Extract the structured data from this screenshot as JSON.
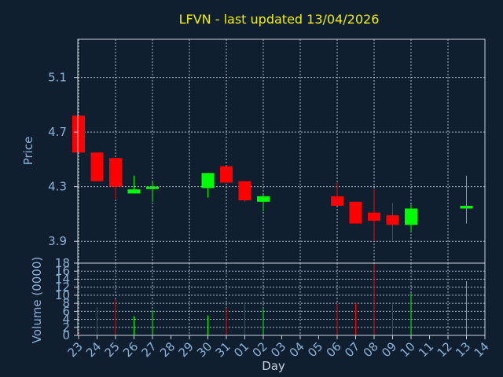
{
  "colors": {
    "background": "#0f1f30",
    "title": "#f0f000",
    "axis_text": "#8fb2d4",
    "grid": "#c8d2dc",
    "frame": "#c8d2dc",
    "up": "#00ff00",
    "down": "#ff0000"
  },
  "chart_data": [
    {
      "type": "candlestick",
      "title": "LFVN - last updated 13/04/2026",
      "ylabel": "Price",
      "ylim": [
        3.74,
        5.38
      ],
      "yticks": [
        3.9,
        4.3,
        4.7,
        5.1
      ],
      "ytick_labels": [
        "3.9",
        "4.3",
        "4.7",
        "5.1"
      ],
      "grid": true,
      "x": [
        "23",
        "24",
        "25",
        "26",
        "27",
        "28",
        "29",
        "30",
        "31",
        "01",
        "02",
        "03",
        "04",
        "05",
        "06",
        "07",
        "08",
        "09",
        "10",
        "11",
        "12",
        "13",
        "14"
      ],
      "candles": [
        {
          "x": "23",
          "open": 4.82,
          "high": 4.82,
          "low": 4.55,
          "close": 4.55,
          "dir": "down"
        },
        {
          "x": "24",
          "open": 4.55,
          "high": 4.55,
          "low": 4.34,
          "close": 4.34,
          "dir": "down"
        },
        {
          "x": "25",
          "open": 4.51,
          "high": 4.51,
          "low": 4.21,
          "close": 4.3,
          "dir": "down"
        },
        {
          "x": "26",
          "open": 4.25,
          "high": 4.38,
          "low": 4.25,
          "close": 4.28,
          "dir": "up"
        },
        {
          "x": "27",
          "open": 4.29,
          "high": 4.34,
          "low": 4.19,
          "close": 4.3,
          "dir": "up"
        },
        {
          "x": "30",
          "open": 4.29,
          "high": 4.4,
          "low": 4.22,
          "close": 4.4,
          "dir": "up"
        },
        {
          "x": "31",
          "open": 4.45,
          "high": 4.45,
          "low": 4.33,
          "close": 4.33,
          "dir": "down"
        },
        {
          "x": "01",
          "open": 4.34,
          "high": 4.34,
          "low": 4.19,
          "close": 4.2,
          "dir": "down"
        },
        {
          "x": "02",
          "open": 4.19,
          "high": 4.24,
          "low": 4.12,
          "close": 4.23,
          "dir": "up"
        },
        {
          "x": "06",
          "open": 4.23,
          "high": 4.33,
          "low": 4.16,
          "close": 4.16,
          "dir": "down"
        },
        {
          "x": "07",
          "open": 4.19,
          "high": 4.19,
          "low": 4.03,
          "close": 4.03,
          "dir": "down"
        },
        {
          "x": "08",
          "open": 4.11,
          "high": 4.28,
          "low": 3.9,
          "close": 4.05,
          "dir": "down"
        },
        {
          "x": "09",
          "open": 4.09,
          "high": 4.18,
          "low": 3.91,
          "close": 4.02,
          "dir": "down"
        },
        {
          "x": "10",
          "open": 4.02,
          "high": 4.17,
          "low": 3.97,
          "close": 4.14,
          "dir": "up"
        },
        {
          "x": "13",
          "open": 4.14,
          "high": 4.38,
          "low": 4.03,
          "close": 4.16,
          "dir": "up"
        }
      ]
    },
    {
      "type": "bar",
      "xlabel": "Day",
      "ylabel": "Volume (0000)",
      "ylim": [
        0,
        18
      ],
      "yticks": [
        0,
        2,
        4,
        6,
        8,
        10,
        12,
        14,
        16,
        18
      ],
      "ytick_labels": [
        "0",
        "2",
        "4",
        "6",
        "8",
        "10",
        "12",
        "14",
        "16",
        "18"
      ],
      "grid": true,
      "categories": [
        "23",
        "24",
        "25",
        "26",
        "27",
        "28",
        "29",
        "30",
        "31",
        "01",
        "02",
        "03",
        "04",
        "05",
        "06",
        "07",
        "08",
        "09",
        "10",
        "11",
        "12",
        "13",
        "14"
      ],
      "bars": [
        {
          "x": "23",
          "value": 0.3,
          "dir": "down"
        },
        {
          "x": "24",
          "value": 7.0,
          "dir": "down"
        },
        {
          "x": "25",
          "value": 9.0,
          "dir": "down"
        },
        {
          "x": "26",
          "value": 4.8,
          "dir": "up"
        },
        {
          "x": "27",
          "value": 6.2,
          "dir": "up"
        },
        {
          "x": "30",
          "value": 5.0,
          "dir": "up"
        },
        {
          "x": "31",
          "value": 6.8,
          "dir": "down"
        },
        {
          "x": "01",
          "value": 8.3,
          "dir": "down"
        },
        {
          "x": "02",
          "value": 6.5,
          "dir": "up"
        },
        {
          "x": "06",
          "value": 7.8,
          "dir": "down"
        },
        {
          "x": "07",
          "value": 8.0,
          "dir": "down"
        },
        {
          "x": "08",
          "value": 17.8,
          "dir": "down"
        },
        {
          "x": "09",
          "value": 8.0,
          "dir": "down"
        },
        {
          "x": "10",
          "value": 10.5,
          "dir": "up"
        },
        {
          "x": "13",
          "value": 13.5,
          "dir": "up"
        }
      ]
    }
  ]
}
